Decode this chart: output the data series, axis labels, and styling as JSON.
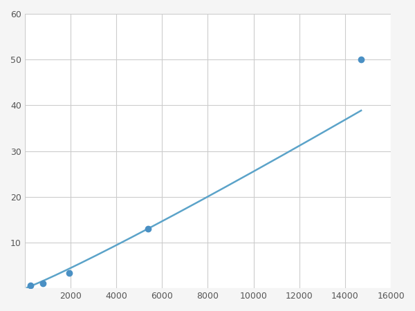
{
  "x_data": [
    250,
    800,
    1950,
    5400,
    14700
  ],
  "y_data": [
    0.7,
    1.1,
    3.3,
    13.0,
    50.0
  ],
  "line_color": "#5ba3c9",
  "marker_color": "#4a90c4",
  "marker_size": 6,
  "xlim": [
    0,
    16000
  ],
  "ylim": [
    0,
    60
  ],
  "xticks": [
    0,
    2000,
    4000,
    6000,
    8000,
    10000,
    12000,
    14000,
    16000
  ],
  "yticks": [
    0,
    10,
    20,
    30,
    40,
    50,
    60
  ],
  "grid_color": "#cccccc",
  "bg_color": "#ffffff",
  "fig_bg_color": "#f5f5f5",
  "linewidth": 1.8
}
